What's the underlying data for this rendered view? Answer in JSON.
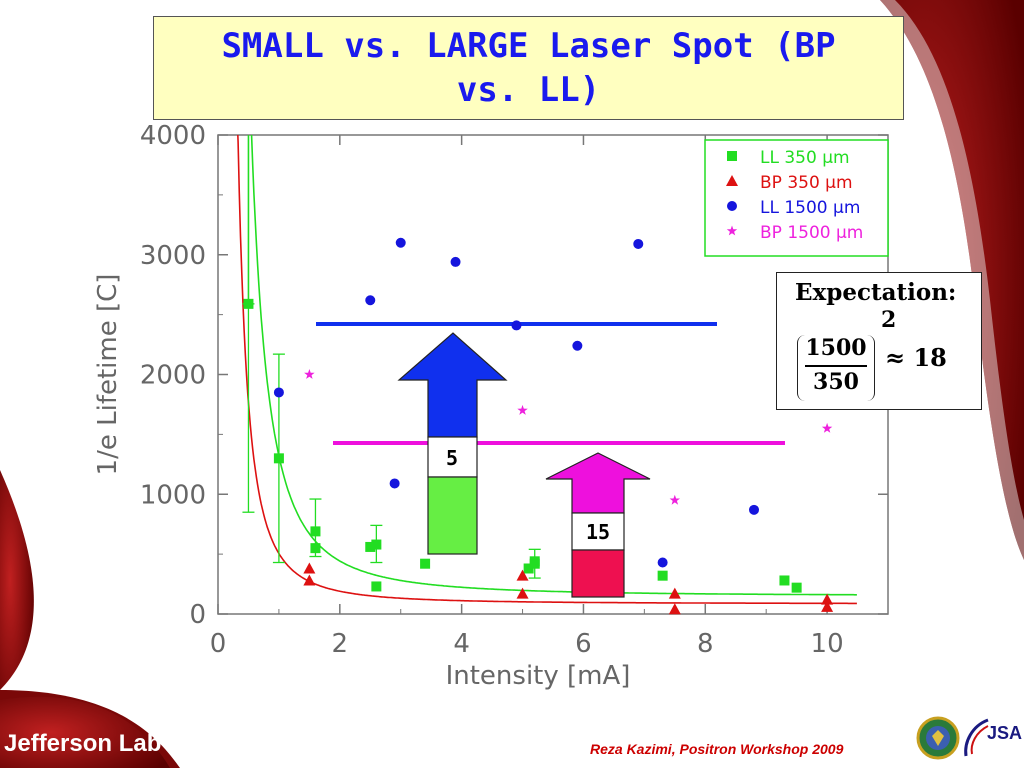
{
  "slide": {
    "title": "SMALL vs. LARGE Laser Spot (BP\nvs. LL)",
    "footer_lab": "Jefferson Lab",
    "footer_credit": "Reza Kazimi, Positron Workshop 2009",
    "jsa_label": "JSA"
  },
  "expectation": {
    "title": "Expectation:",
    "exponent": "2",
    "numerator": "1500",
    "denominator": "350",
    "approx": "≈ 18"
  },
  "arrows": {
    "large": {
      "label": "5",
      "color": "#1030ee"
    },
    "small": {
      "label": "15",
      "color": "#ee10dd"
    }
  },
  "chart_data": {
    "type": "scatter",
    "xlabel": "Intensity [mA]",
    "ylabel": "1/e Lifetime [C]",
    "xlim": [
      0,
      11
    ],
    "ylim": [
      0,
      4000
    ],
    "xticks": [
      0,
      2,
      4,
      6,
      8,
      10
    ],
    "yticks": [
      0,
      1000,
      2000,
      3000,
      4000
    ],
    "legend_position": "top-right",
    "series": [
      {
        "name": "LL 350 μm",
        "marker": "square",
        "color": "#22dd22",
        "x": [
          0.5,
          1.0,
          1.6,
          1.6,
          2.5,
          2.6,
          2.6,
          3.4,
          5.1,
          5.2,
          5.2,
          7.3,
          9.3,
          9.5
        ],
        "y": [
          2590,
          1300,
          690,
          550,
          560,
          580,
          230,
          420,
          380,
          420,
          440,
          320,
          280,
          220
        ]
      },
      {
        "name": "BP 350 μm",
        "marker": "triangle",
        "color": "#dd1111",
        "x": [
          1.5,
          1.5,
          5.0,
          5.0,
          7.5,
          7.5,
          10.0,
          10.0
        ],
        "y": [
          380,
          280,
          320,
          170,
          170,
          40,
          120,
          60
        ]
      },
      {
        "name": "LL 1500 μm",
        "marker": "circle",
        "color": "#1515dd",
        "x": [
          1.0,
          2.5,
          2.9,
          3.0,
          3.9,
          4.9,
          5.9,
          6.9,
          7.3,
          8.8
        ],
        "y": [
          1850,
          2620,
          1090,
          3100,
          2940,
          2410,
          2240,
          3090,
          430,
          870
        ]
      },
      {
        "name": "BP 1500 μm",
        "marker": "star",
        "color": "#ee22dd",
        "x": [
          1.5,
          5.0,
          7.5,
          10.0
        ],
        "y": [
          2000,
          1700,
          950,
          1550
        ]
      }
    ]
  }
}
